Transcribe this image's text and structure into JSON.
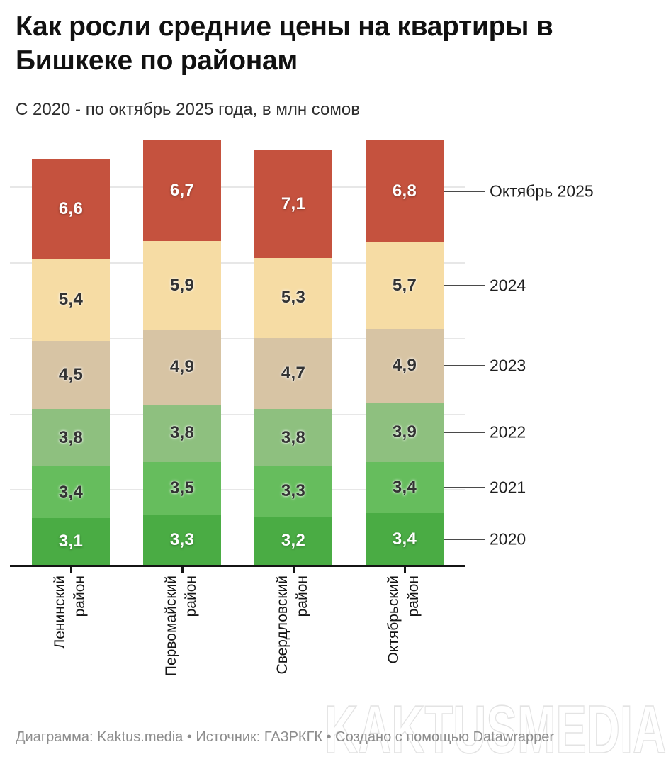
{
  "header": {
    "title": "Как росли средние цены на квартиры в Бишкеке по районам",
    "subtitle": "С 2020 - по октябрь 2025 года, в млн сомов"
  },
  "chart_data": {
    "type": "bar",
    "stacked": true,
    "title": "Как росли средние цены на квартиры в Бишкеке по районам",
    "subtitle": "С 2020 - по октябрь 2025 года, в млн сомов",
    "unit": "млн сомов",
    "categories": [
      "Ленинский район",
      "Первомайский район",
      "Свердловский район",
      "Октябрьский район"
    ],
    "category_lines": [
      [
        "Ленинский",
        "район"
      ],
      [
        "Первомайский",
        "район"
      ],
      [
        "Свердловский",
        "район"
      ],
      [
        "Октябрьский",
        "район"
      ]
    ],
    "series": [
      {
        "name": "2020",
        "color": "#4aac44",
        "label_style": "light",
        "values": [
          3.1,
          3.3,
          3.2,
          3.4
        ]
      },
      {
        "name": "2021",
        "color": "#66bd5d",
        "label_style": "dark",
        "values": [
          3.4,
          3.5,
          3.3,
          3.4
        ]
      },
      {
        "name": "2022",
        "color": "#8ec07f",
        "label_style": "dark",
        "values": [
          3.8,
          3.8,
          3.8,
          3.9
        ]
      },
      {
        "name": "2023",
        "color": "#d7c4a4",
        "label_style": "dark",
        "values": [
          4.5,
          4.9,
          4.7,
          4.9
        ]
      },
      {
        "name": "2024",
        "color": "#f6dca4",
        "label_style": "dark",
        "values": [
          5.4,
          5.9,
          5.3,
          5.7
        ]
      },
      {
        "name": "Октябрь 2025",
        "color": "#c5523e",
        "label_style": "light",
        "values": [
          6.6,
          6.7,
          7.1,
          6.8
        ]
      }
    ],
    "right_axis_labels": [
      "Октябрь 2025",
      "2024",
      "2023",
      "2022",
      "2021",
      "2020"
    ],
    "grid_interval": 5,
    "value_axis_hidden": true,
    "decimal_separator": ",",
    "legend_position": "right-of-last-bar"
  },
  "footer": {
    "credit": "Диаграмма: Kaktus.media • Источник: ГАЗРКГК • Создано с помощью Datawrapper",
    "watermark": "KAKTUSMEDIA"
  }
}
